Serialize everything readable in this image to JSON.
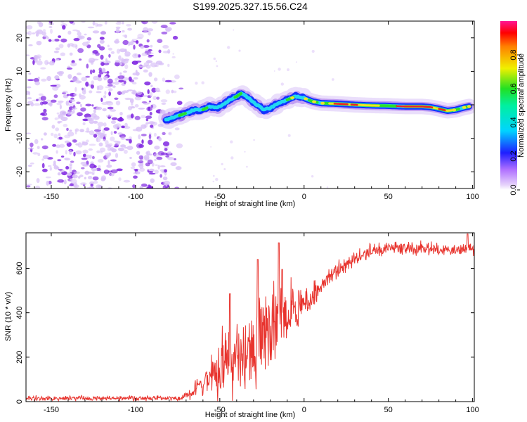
{
  "title": "S199.2025.327.15.56.C24",
  "colors": {
    "snr_line": "#e8342e",
    "blob_purple_dark": "#7b1fe0",
    "blob_purple_light": "#d9c2f7",
    "track_blue": "#1432ff",
    "track_cyan": "#22d8f0",
    "track_green": "#2bdf2b",
    "track_yellow": "#f0e02a",
    "track_red": "#f02222"
  },
  "chart_data": [
    {
      "type": "heatmap",
      "name": "spectrogram",
      "xlabel": "Height of straight line (km)",
      "ylabel": "Frequency (Hz)",
      "xlim": [
        -165,
        101
      ],
      "ylim": [
        -25,
        25
      ],
      "xticks": [
        -150,
        -100,
        -50,
        0,
        50,
        100
      ],
      "yticks": [
        -20,
        -10,
        0,
        10,
        20
      ],
      "colorbar": {
        "label": "Normalized spectral amplitude",
        "range": [
          0,
          1
        ],
        "ticks": [
          "0.0",
          "0.2",
          "0.4",
          "0.6",
          "0.8"
        ],
        "tick_values": [
          0.0,
          0.2,
          0.4,
          0.6,
          0.8
        ]
      },
      "noise_region_km": [
        -165,
        -80
      ],
      "tonal_track": {
        "x": [
          -82,
          -76,
          -70,
          -65,
          -60,
          -56,
          -52,
          -48,
          -44,
          -40,
          -37,
          -33,
          -28,
          -24,
          -20,
          -15,
          -10,
          -5,
          0,
          5,
          10,
          20,
          30,
          40,
          50,
          60,
          70,
          75,
          80,
          85,
          90,
          95,
          98
        ],
        "freq": [
          -4.5,
          -3.5,
          -2.5,
          -1.5,
          -1.5,
          -0.5,
          -1.0,
          0.0,
          1.5,
          2.5,
          3.5,
          2.0,
          0.0,
          -1.5,
          -1.0,
          0.5,
          1.5,
          2.5,
          2.0,
          1.0,
          0.5,
          0.3,
          0.0,
          -0.2,
          -0.3,
          -0.5,
          -0.5,
          -0.7,
          -1.2,
          -1.8,
          -1.5,
          -0.8,
          -0.5
        ],
        "amplitude": [
          0.25,
          0.3,
          0.35,
          0.3,
          0.35,
          0.3,
          0.3,
          0.35,
          0.4,
          0.45,
          0.5,
          0.45,
          0.4,
          0.45,
          0.5,
          0.5,
          0.55,
          0.6,
          0.6,
          0.65,
          0.7,
          0.85,
          0.8,
          0.75,
          0.7,
          0.8,
          0.9,
          0.9,
          0.85,
          0.75,
          0.7,
          0.6,
          0.5
        ]
      }
    },
    {
      "type": "line",
      "name": "snr",
      "xlabel": "Height of straight line (km)",
      "ylabel": "SNR (10 * v/v)",
      "xlim": [
        -165,
        101
      ],
      "ylim": [
        0,
        760
      ],
      "xticks": [
        -150,
        -100,
        -50,
        0,
        50,
        100
      ],
      "yticks": [
        0,
        200,
        400,
        600
      ],
      "series": [
        {
          "name": "SNR",
          "profile_x": [
            -165,
            -75,
            -68,
            -60,
            -50,
            -40,
            -30,
            -20,
            -10,
            0,
            10,
            20,
            30,
            40,
            50,
            60,
            70,
            80,
            90,
            100
          ],
          "profile_mean": [
            15,
            15,
            30,
            80,
            150,
            200,
            250,
            320,
            380,
            440,
            520,
            590,
            640,
            680,
            690,
            695,
            690,
            685,
            685,
            690
          ],
          "profile_noise": [
            10,
            10,
            20,
            60,
            120,
            160,
            180,
            170,
            120,
            70,
            45,
            35,
            30,
            25,
            25,
            25,
            25,
            25,
            25,
            25
          ],
          "peaks": [
            {
              "x": -27.5,
              "y": 640
            },
            {
              "x": -15,
              "y": 715
            },
            {
              "x": -13,
              "y": 595
            },
            {
              "x": -44,
              "y": 485
            },
            {
              "x": 97,
              "y": 755
            }
          ]
        }
      ]
    }
  ]
}
